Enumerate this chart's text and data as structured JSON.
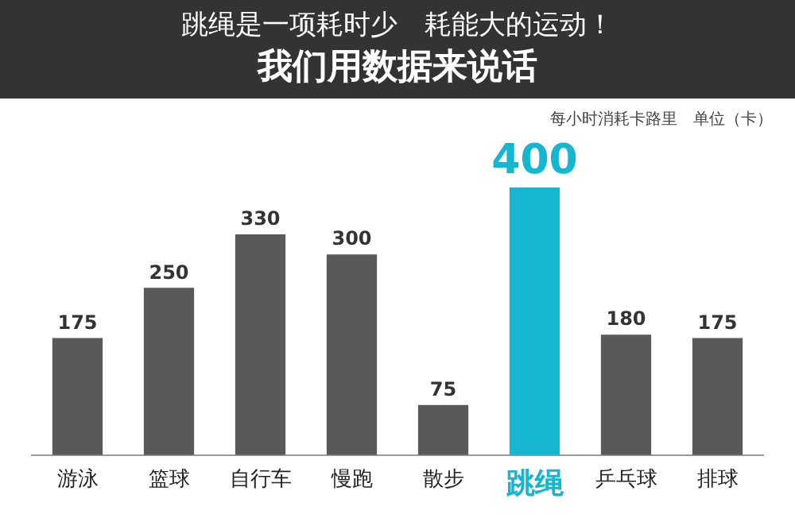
{
  "chart_data": {
    "type": "bar",
    "title": "跳绳是一项耗时少　耗能大的运动！",
    "subtitle": "我们用数据来说话",
    "annotations": [
      "每小时消耗卡路里　单位（卡）"
    ],
    "categories": [
      "游泳",
      "篮球",
      "自行车",
      "慢跑",
      "散步",
      "跳绳",
      "乒乓球",
      "排球"
    ],
    "values": [
      175,
      250,
      330,
      300,
      75,
      400,
      180,
      175
    ],
    "colors": [
      "#595959",
      "#595959",
      "#595959",
      "#595959",
      "#595959",
      "#17b6d0",
      "#595959",
      "#595959"
    ],
    "data_labels": true,
    "grid": false,
    "legend": false
  }
}
